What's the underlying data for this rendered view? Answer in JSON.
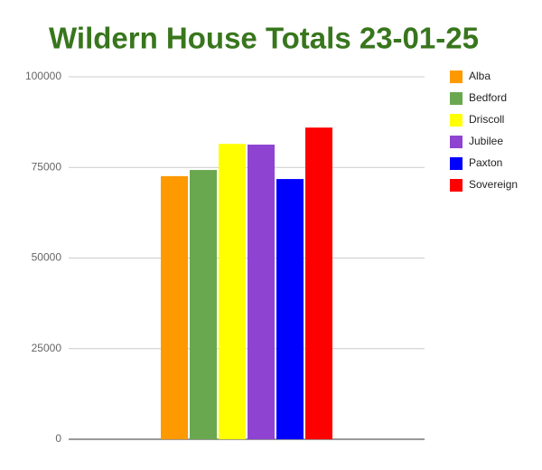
{
  "chart_data": {
    "type": "bar",
    "title": "Wildern House Totals 23-01-25",
    "categories": [
      null
    ],
    "series": [
      {
        "name": "Alba",
        "color": "#ff9900",
        "values": [
          72600
        ]
      },
      {
        "name": "Bedford",
        "color": "#6aa84f",
        "values": [
          74300
        ]
      },
      {
        "name": "Driscoll",
        "color": "#ffff00",
        "values": [
          81500
        ]
      },
      {
        "name": "Jubilee",
        "color": "#8e44d1",
        "values": [
          81300
        ]
      },
      {
        "name": "Paxton",
        "color": "#0000ff",
        "values": [
          71800
        ]
      },
      {
        "name": "Sovereign",
        "color": "#ff0000",
        "values": [
          86000
        ]
      }
    ],
    "ylim": [
      0,
      100000
    ],
    "yticks": [
      0,
      25000,
      50000,
      75000,
      100000
    ],
    "grid": true,
    "legend": "right"
  }
}
